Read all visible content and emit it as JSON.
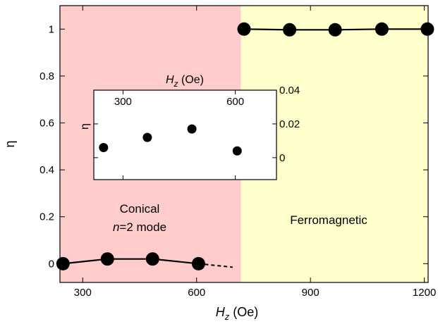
{
  "chart_data": [
    {
      "type": "scatter",
      "role": "main",
      "xlabel": {
        "base": "H",
        "sub": "z",
        "unit": " (Oe)"
      },
      "ylabel": "η",
      "xlim": [
        240,
        1210
      ],
      "ylim": [
        -0.08,
        1.1
      ],
      "xticks": [
        300,
        600,
        900,
        1200
      ],
      "yticks": [
        0,
        0.2,
        0.4,
        0.6,
        0.8,
        1
      ],
      "ytick_labels": [
        "0",
        "0.2",
        "0.4",
        "0.6",
        "0.8",
        "1"
      ],
      "regions": [
        {
          "label_lines": [
            "Conical",
            "n=2 mode"
          ],
          "x_range": [
            240,
            717
          ],
          "color": "#ffcccc"
        },
        {
          "label_lines": [
            "Ferromagnetic"
          ],
          "x_range": [
            717,
            1210
          ],
          "color": "#ffffcc"
        }
      ],
      "series": [
        {
          "x": [
            248,
            365,
            484,
            605
          ],
          "y": [
            0.0,
            0.02,
            0.02,
            0.0
          ]
        },
        {
          "x": [
            725,
            845,
            965,
            1088,
            1208
          ],
          "y": [
            1.0,
            0.997,
            0.997,
            1.0,
            1.0
          ]
        }
      ],
      "extrapolation": {
        "x": [
          605,
          695
        ],
        "y": [
          0.0,
          -0.015
        ]
      }
    },
    {
      "type": "scatter",
      "role": "inset",
      "xlabel": {
        "base": "H",
        "sub": "z",
        "unit": " (Oe)"
      },
      "ylabel": "η",
      "xlim": [
        222,
        710
      ],
      "ylim": [
        -0.013,
        0.04
      ],
      "xticks": [
        300,
        600
      ],
      "yticks": [
        0,
        0.02,
        0.04
      ],
      "ytick_labels": [
        "0",
        "0.02",
        "0.04"
      ],
      "points": {
        "x": [
          248,
          365,
          484,
          605
        ],
        "y": [
          0.006,
          0.012,
          0.017,
          0.004
        ]
      }
    }
  ]
}
